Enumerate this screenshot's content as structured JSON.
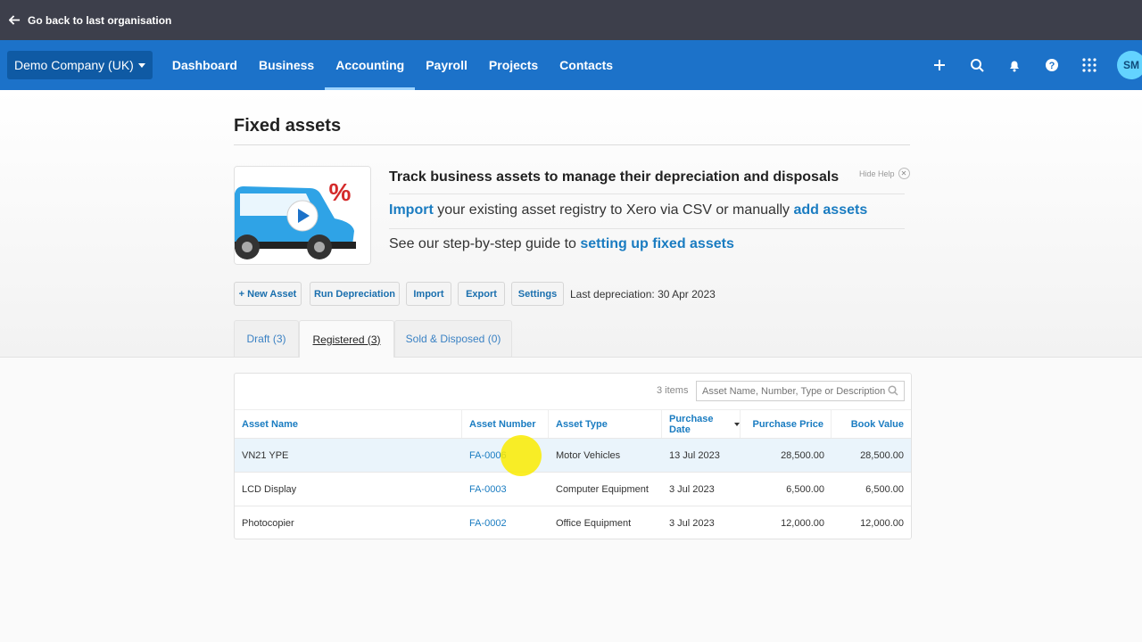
{
  "topbar": {
    "back_label": "Go back to last organisation"
  },
  "nav": {
    "org_name": "Demo Company (UK)",
    "items": [
      {
        "label": "Dashboard"
      },
      {
        "label": "Business"
      },
      {
        "label": "Accounting",
        "active": true
      },
      {
        "label": "Payroll"
      },
      {
        "label": "Projects"
      },
      {
        "label": "Contacts"
      }
    ],
    "icons": [
      "plus-icon",
      "search-icon",
      "bell-icon",
      "help-icon",
      "apps-grid-icon"
    ],
    "avatar_initials": "SM"
  },
  "page": {
    "title": "Fixed assets"
  },
  "help": {
    "heading": "Track business assets to manage their depreciation and disposals",
    "import_link": "Import",
    "import_text": " your existing asset registry to Xero via CSV or manually ",
    "add_assets_link": "add assets",
    "guide_text": "See our step-by-step guide to ",
    "guide_link": "setting up fixed assets",
    "hide_label": "Hide Help",
    "thumb_symbol": "%"
  },
  "toolbar": {
    "new_asset": "+ New Asset",
    "run_depreciation": "Run Depreciation",
    "import": "Import",
    "export": "Export",
    "settings": "Settings",
    "last_depreciation": "Last depreciation: 30 Apr 2023"
  },
  "tabs": [
    {
      "label": "Draft (3)"
    },
    {
      "label": "Registered (3)",
      "active": true
    },
    {
      "label": "Sold & Disposed (0)"
    }
  ],
  "table": {
    "items_count": "3 items",
    "search_placeholder": "Asset Name, Number, Type or Description",
    "columns": [
      "Asset Name",
      "Asset Number",
      "Asset Type",
      "Purchase Date",
      "Purchase Price",
      "Book Value"
    ],
    "rows": [
      {
        "name": "VN21 YPE",
        "number": "FA-0006",
        "type": "Motor Vehicles",
        "date": "13 Jul 2023",
        "price": "28,500.00",
        "book": "28,500.00"
      },
      {
        "name": "LCD Display",
        "number": "FA-0003",
        "type": "Computer Equipment",
        "date": "3 Jul 2023",
        "price": "6,500.00",
        "book": "6,500.00"
      },
      {
        "name": "Photocopier",
        "number": "FA-0002",
        "type": "Office Equipment",
        "date": "3 Jul 2023",
        "price": "12,000.00",
        "book": "12,000.00"
      }
    ]
  },
  "colors": {
    "nav_bg": "#1c72c9",
    "topbar_bg": "#3d3f4b",
    "link": "#1a7cc1",
    "highlight_row": "#eaf4fb"
  }
}
